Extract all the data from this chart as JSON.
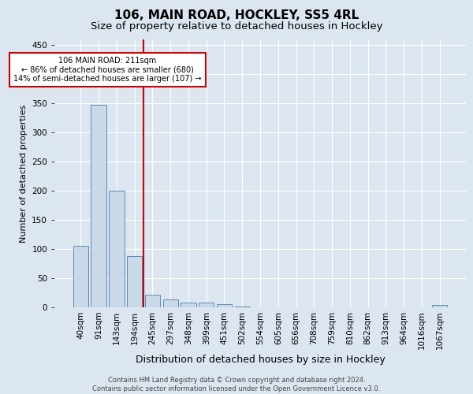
{
  "title": "106, MAIN ROAD, HOCKLEY, SS5 4RL",
  "subtitle": "Size of property relative to detached houses in Hockley",
  "xlabel": "Distribution of detached houses by size in Hockley",
  "ylabel": "Number of detached properties",
  "categories": [
    "40sqm",
    "91sqm",
    "143sqm",
    "194sqm",
    "245sqm",
    "297sqm",
    "348sqm",
    "399sqm",
    "451sqm",
    "502sqm",
    "554sqm",
    "605sqm",
    "656sqm",
    "708sqm",
    "759sqm",
    "810sqm",
    "862sqm",
    "913sqm",
    "964sqm",
    "1016sqm",
    "1067sqm"
  ],
  "values": [
    105,
    348,
    200,
    88,
    22,
    13,
    8,
    8,
    5,
    2,
    0,
    0,
    0,
    0,
    0,
    0,
    0,
    0,
    0,
    0,
    4
  ],
  "bar_color": "#c9d9e8",
  "bar_edge_color": "#5b8db8",
  "background_color": "#dce6f0",
  "grid_color": "#ffffff",
  "red_line_x": 3.5,
  "annotation_text": "106 MAIN ROAD: 211sqm\n← 86% of detached houses are smaller (680)\n14% of semi-detached houses are larger (107) →",
  "annotation_box_color": "#ffffff",
  "annotation_box_edge": "#cc0000",
  "red_line_color": "#cc0000",
  "ylim": [
    0,
    460
  ],
  "yticks": [
    0,
    50,
    100,
    150,
    200,
    250,
    300,
    350,
    400,
    450
  ],
  "footer": "Contains HM Land Registry data © Crown copyright and database right 2024.\nContains public sector information licensed under the Open Government Licence v3.0.",
  "title_fontsize": 11,
  "subtitle_fontsize": 9.5,
  "tick_fontsize": 7.5,
  "ylabel_fontsize": 8,
  "xlabel_fontsize": 9,
  "footer_fontsize": 6
}
